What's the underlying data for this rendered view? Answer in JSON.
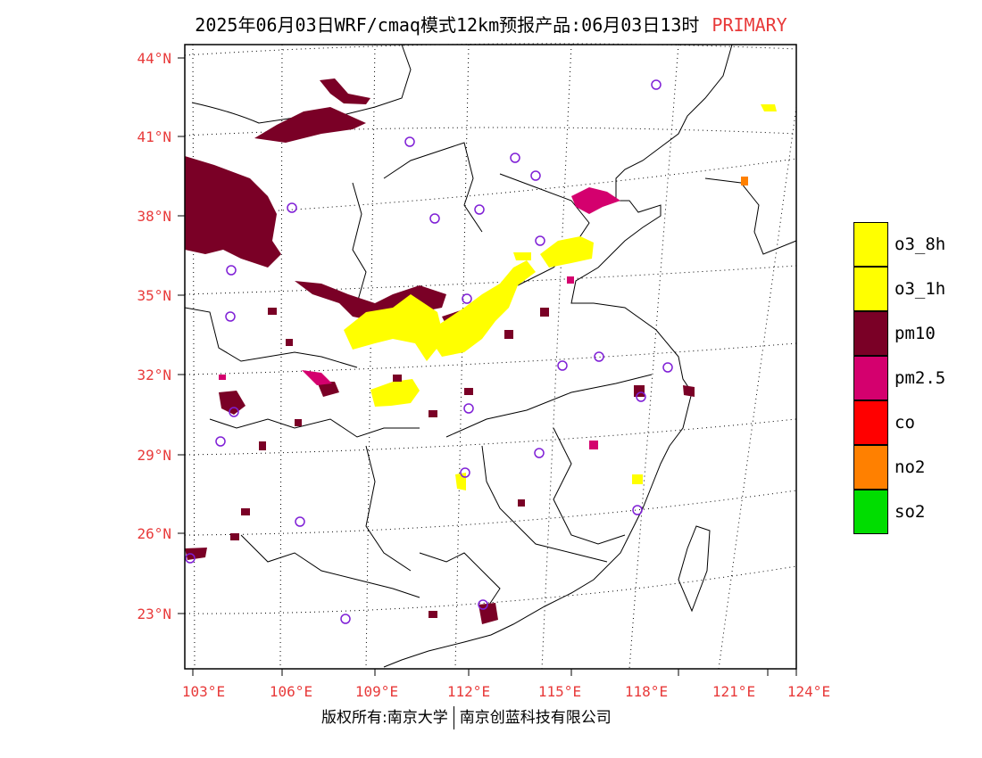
{
  "title": {
    "main": "2025年06月03日WRF/cmaq模式12km预报产品:06月03日13时",
    "tag": "PRIMARY"
  },
  "footer": {
    "left": "版权所有:南京大学",
    "right": "南京创蓝科技有限公司"
  },
  "map": {
    "lon_range": [
      102.8,
      124.0
    ],
    "lat_range": [
      21.5,
      44.6
    ],
    "lat_labels": [
      "44°N",
      "41°N",
      "38°N",
      "35°N",
      "32°N",
      "29°N",
      "26°N",
      "23°N"
    ],
    "lon_labels": [
      "103°E",
      "106°E",
      "109°E",
      "112°E",
      "115°E",
      "118°E",
      "121°E",
      "124°E"
    ],
    "label_color": "#e83a3a",
    "station_marker_color": "#7f1fd6"
  },
  "legend": [
    {
      "label": "o3_8h",
      "color": "#ffff00"
    },
    {
      "label": "o3_1h",
      "color": "#ffff00"
    },
    {
      "label": "pm10",
      "color": "#7a0026"
    },
    {
      "label": "pm2.5",
      "color": "#d4006e"
    },
    {
      "label": "co",
      "color": "#ff0000"
    },
    {
      "label": "no2",
      "color": "#ff8000"
    },
    {
      "label": "so2",
      "color": "#00dd00"
    }
  ]
}
